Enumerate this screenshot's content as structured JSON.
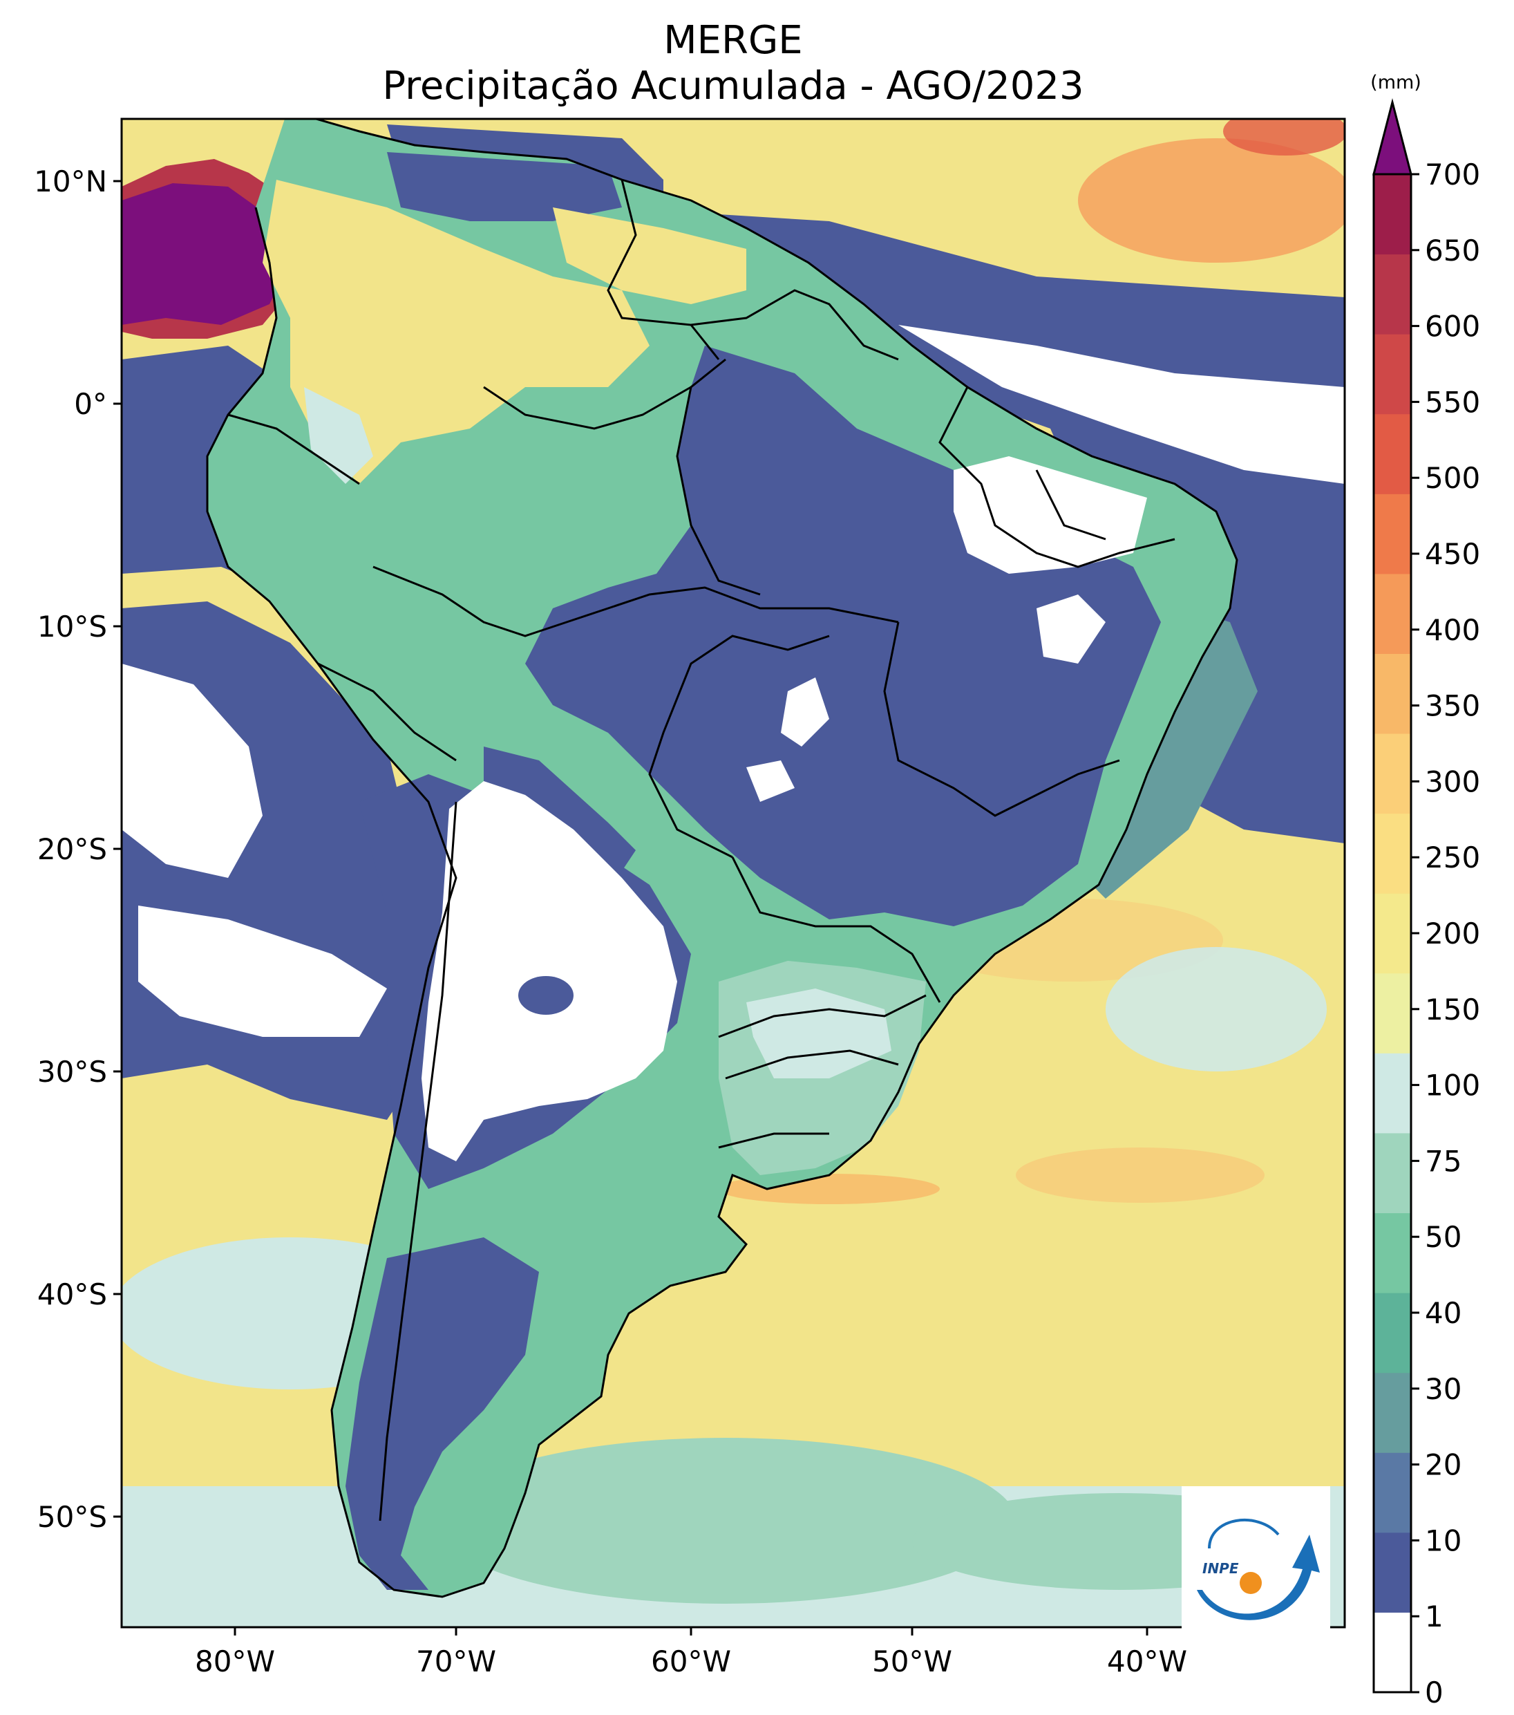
{
  "title": {
    "line1": "MERGE",
    "line2": "Precipitação Acumulada - AGO/2023"
  },
  "colorbar": {
    "unit": "(mm)",
    "levels": [
      "0",
      "1",
      "10",
      "20",
      "30",
      "40",
      "50",
      "75",
      "100",
      "150",
      "200",
      "250",
      "300",
      "350",
      "400",
      "450",
      "500",
      "550",
      "600",
      "650",
      "700"
    ],
    "colors": [
      "#ffffff",
      "#4b5a9a",
      "#5a79a5",
      "#669d9e",
      "#5db399",
      "#76c7a2",
      "#9fd5bd",
      "#cfe9e4",
      "#edf0a2",
      "#f4e98c",
      "#fade82",
      "#fbcf78",
      "#f8b868",
      "#f59a59",
      "#ef7a4a",
      "#e25b45",
      "#cf4848",
      "#b7364a",
      "#9d1e4a"
    ],
    "extend_color": "#7c0f7c"
  },
  "axes": {
    "lon_ticks": [
      "80°W",
      "70°W",
      "60°W",
      "50°W",
      "40°W"
    ],
    "lat_ticks": [
      "10°N",
      "0°",
      "10°S",
      "20°S",
      "30°S",
      "40°S",
      "50°S"
    ]
  },
  "logo": {
    "text": "INPE"
  },
  "map_colors": {
    "ocean_wet": "#f2e48a",
    "ocean_light": "#cfe9e4",
    "dry": "#4b5a9a",
    "mid": "#76c7a2",
    "peak": "#7c0f7c"
  }
}
